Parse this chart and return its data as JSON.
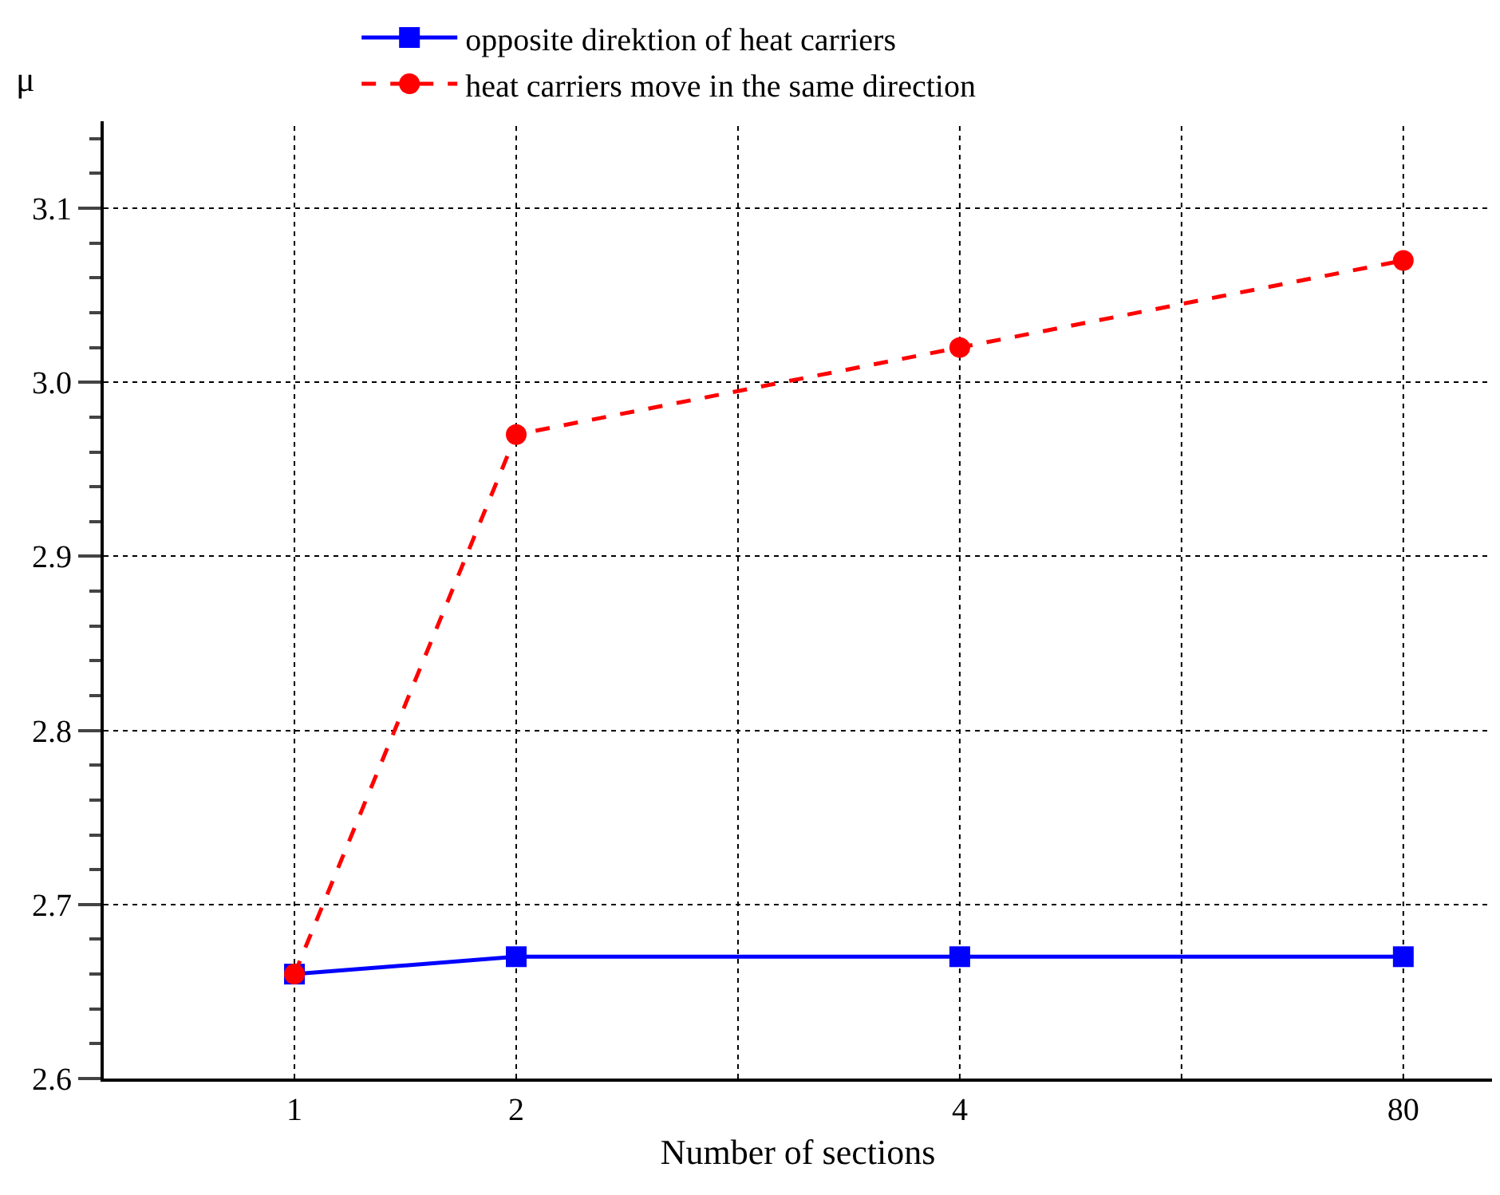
{
  "chart_data": {
    "type": "line",
    "xlabel": "Number of sections",
    "ylabel": "μ",
    "categories": [
      "1",
      "2",
      null,
      "4",
      null,
      "80"
    ],
    "series": [
      {
        "name": "opposite direktion of heat carriers",
        "color": "#0000ff",
        "values": [
          2.66,
          2.67,
          null,
          2.67,
          null,
          2.67
        ],
        "marker": "square",
        "line_style": "solid"
      },
      {
        "name": "heat carriers move in the same direction",
        "color": "#ff0000",
        "values": [
          2.66,
          2.97,
          null,
          3.02,
          null,
          3.07
        ],
        "marker": "circle",
        "line_style": "dashed"
      }
    ],
    "ylim": [
      2.6,
      3.15
    ],
    "yticks": [
      2.6,
      2.7,
      2.8,
      2.9,
      {
        "value": 3,
        "label": "3.0"
      },
      3.1
    ],
    "grid": true,
    "legend": "top"
  }
}
